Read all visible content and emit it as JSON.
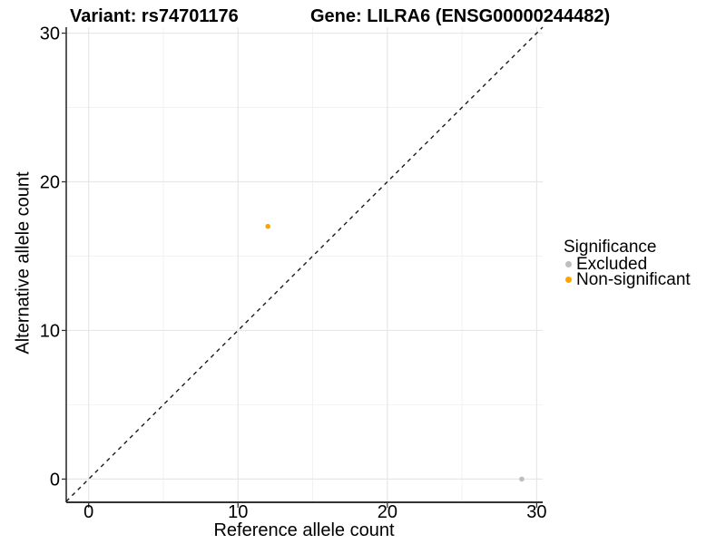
{
  "title": {
    "left": "Variant: rs74701176",
    "right": "Gene: LILRA6 (ENSG00000244482)"
  },
  "chart_data": {
    "type": "scatter",
    "title": "Variant: rs74701176   Gene: LILRA6 (ENSG00000244482)",
    "xlabel": "Reference allele count",
    "ylabel": "Alternative allele count",
    "xlim": [
      -1.5,
      30.4
    ],
    "ylim": [
      -1.5,
      30.4
    ],
    "x_ticks": [
      0,
      10,
      20,
      30
    ],
    "y_ticks": [
      0,
      10,
      20,
      30
    ],
    "x_minor_ticks": [
      5,
      15,
      25
    ],
    "y_minor_ticks": [
      5,
      15,
      25
    ],
    "grid": "major+minor",
    "identity_line": {
      "style": "dashed",
      "equation": "y = x",
      "color": "#1A1A1A"
    },
    "legend": {
      "title": "Significance",
      "position": "right",
      "entries": [
        "Excluded",
        "Non-significant"
      ]
    },
    "series": [
      {
        "name": "Excluded",
        "color": "#BEBEBE",
        "points": [
          {
            "x": 29,
            "y": 0
          }
        ]
      },
      {
        "name": "Non-significant",
        "color": "#FFA500",
        "points": [
          {
            "x": 12,
            "y": 17
          }
        ]
      }
    ]
  },
  "colors": {
    "background": "#FFFFFF",
    "grid_major": "#E7E7E7",
    "grid_minor": "#F2F2F2",
    "axis_line_x": "#333333",
    "axis_line_y": "#000000",
    "tick_mark": "#333333",
    "identity_line": "#1A1A1A",
    "excluded": "#BEBEBE",
    "non_significant": "#FFA500",
    "text": "#000000"
  }
}
